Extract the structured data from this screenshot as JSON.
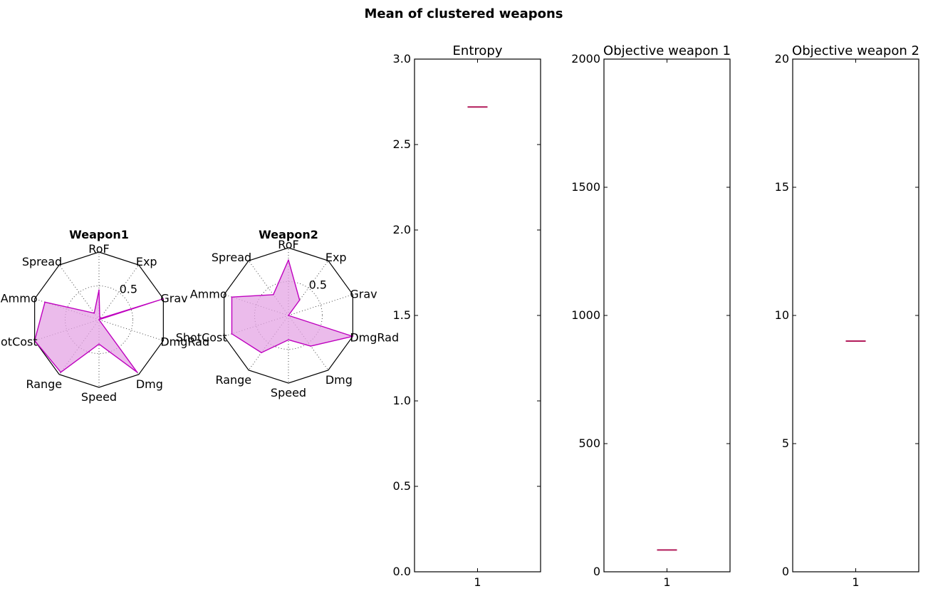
{
  "figure": {
    "suptitle": "Mean of clustered weapons"
  },
  "colors": {
    "radar_line": "#bf00bf",
    "radar_fill": "#e4a4e4",
    "median": "#b21a5a",
    "frame": "#000000",
    "grid": "#333333"
  },
  "chart_data": [
    {
      "type": "radar",
      "title": "Weapon1",
      "axes": [
        "RoF",
        "Exp",
        "Grav",
        "DmgRad",
        "Dmg",
        "Speed",
        "Range",
        "ShotCost",
        "Ammo",
        "Spread"
      ],
      "values": [
        0.44,
        0.02,
        1.0,
        0.0,
        0.96,
        0.36,
        0.96,
        1.0,
        0.84,
        0.12
      ],
      "rgrid": [
        0.5
      ],
      "rlabel": "0.5",
      "rlim": [
        0,
        1
      ]
    },
    {
      "type": "radar",
      "title": "Weapon2",
      "axes": [
        "RoF",
        "Exp",
        "Grav",
        "DmgRad",
        "Dmg",
        "Speed",
        "Range",
        "ShotCost",
        "Ammo",
        "Spread"
      ],
      "values": [
        0.82,
        0.28,
        0.0,
        1.0,
        0.56,
        0.36,
        0.68,
        0.88,
        0.88,
        0.38
      ],
      "rgrid": [
        0.5
      ],
      "rlabel": "0.5",
      "rlim": [
        0,
        1
      ]
    },
    {
      "type": "box",
      "title": "Entropy",
      "categories": [
        "1"
      ],
      "median": 2.72,
      "ylim": [
        0,
        3
      ],
      "yticks": [
        "0.0",
        "0.5",
        "1.0",
        "1.5",
        "2.0",
        "2.5",
        "3.0"
      ],
      "ytick_values": [
        0,
        0.5,
        1.0,
        1.5,
        2.0,
        2.5,
        3.0
      ]
    },
    {
      "type": "box",
      "title": "Objective weapon 1",
      "categories": [
        "1"
      ],
      "median": 85,
      "ylim": [
        0,
        2000
      ],
      "yticks": [
        "0",
        "500",
        "1000",
        "1500",
        "2000"
      ],
      "ytick_values": [
        0,
        500,
        1000,
        1500,
        2000
      ]
    },
    {
      "type": "box",
      "title": "Objective weapon 2",
      "categories": [
        "1"
      ],
      "median": 9,
      "ylim": [
        0,
        20
      ],
      "yticks": [
        "0",
        "5",
        "10",
        "15",
        "20"
      ],
      "ytick_values": [
        0,
        5,
        10,
        15,
        20
      ]
    }
  ]
}
